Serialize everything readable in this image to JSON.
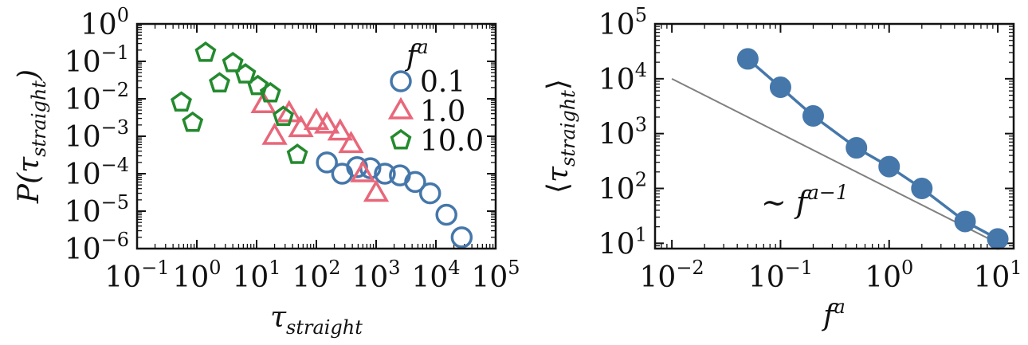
{
  "chart_data": [
    {
      "type": "scatter",
      "xscale": "log",
      "yscale": "log",
      "xlim": [
        0.1,
        100000
      ],
      "ylim": [
        1e-06,
        1
      ],
      "xlabel": "τ_straight",
      "ylabel": "P(τ_straight)",
      "legend_title": "f^a",
      "legend_placement": "top-right",
      "x_ticks": [
        "10^-1",
        "10^0",
        "10^1",
        "10^2",
        "10^3",
        "10^4",
        "10^5"
      ],
      "y_ticks": [
        "10^-6",
        "10^-5",
        "10^-4",
        "10^-3",
        "10^-2",
        "10^-1",
        "10^0"
      ],
      "series": [
        {
          "name": "0.1",
          "marker": "circle",
          "color": "#4577aa",
          "x": [
            150,
            270,
            480,
            800,
            1400,
            2500,
            4500,
            8000,
            15000,
            27000
          ],
          "y": [
            0.0002,
            0.0001,
            0.00015,
            0.00014,
            0.0001,
            9e-05,
            6e-05,
            3e-05,
            8e-06,
            2e-06
          ]
        },
        {
          "name": "1.0",
          "marker": "triangle",
          "color": "#e8677a",
          "x": [
            13,
            20,
            35,
            55,
            100,
            150,
            250,
            380,
            600,
            1000
          ],
          "y": [
            0.007,
            0.001,
            0.004,
            0.0016,
            0.0025,
            0.002,
            0.0013,
            0.0006,
            0.0001,
            3e-05
          ]
        },
        {
          "name": "10.0",
          "marker": "pentagon",
          "color": "#238a2e",
          "x": [
            0.55,
            0.85,
            1.4,
            2.4,
            4,
            6.5,
            10.5,
            17,
            28,
            48
          ],
          "y": [
            0.008,
            0.0023,
            0.17,
            0.026,
            0.09,
            0.045,
            0.022,
            0.014,
            0.0033,
            0.00032
          ]
        }
      ]
    },
    {
      "type": "line",
      "xscale": "log",
      "yscale": "log",
      "xlim": [
        0.007,
        14
      ],
      "ylim": [
        8,
        100000
      ],
      "xlabel": "f^a",
      "ylabel": "⟨τ_straight⟩",
      "x_ticks": [
        "10^-2",
        "10^-1",
        "10^0",
        "10^1"
      ],
      "y_ticks": [
        "10^1",
        "10^2",
        "10^3",
        "10^4",
        "10^5"
      ],
      "series": [
        {
          "marker": "circle-filled",
          "color": "#4577aa",
          "x": [
            0.05,
            0.1,
            0.2,
            0.5,
            1,
            2,
            5,
            10
          ],
          "y": [
            23000,
            7000,
            2100,
            550,
            250,
            100,
            25,
            12
          ]
        }
      ],
      "reference_line": {
        "color": "#808080",
        "x": [
          0.01,
          10
        ],
        "y": [
          10000,
          10
        ]
      },
      "annotation": "∼ f^a-1"
    }
  ]
}
